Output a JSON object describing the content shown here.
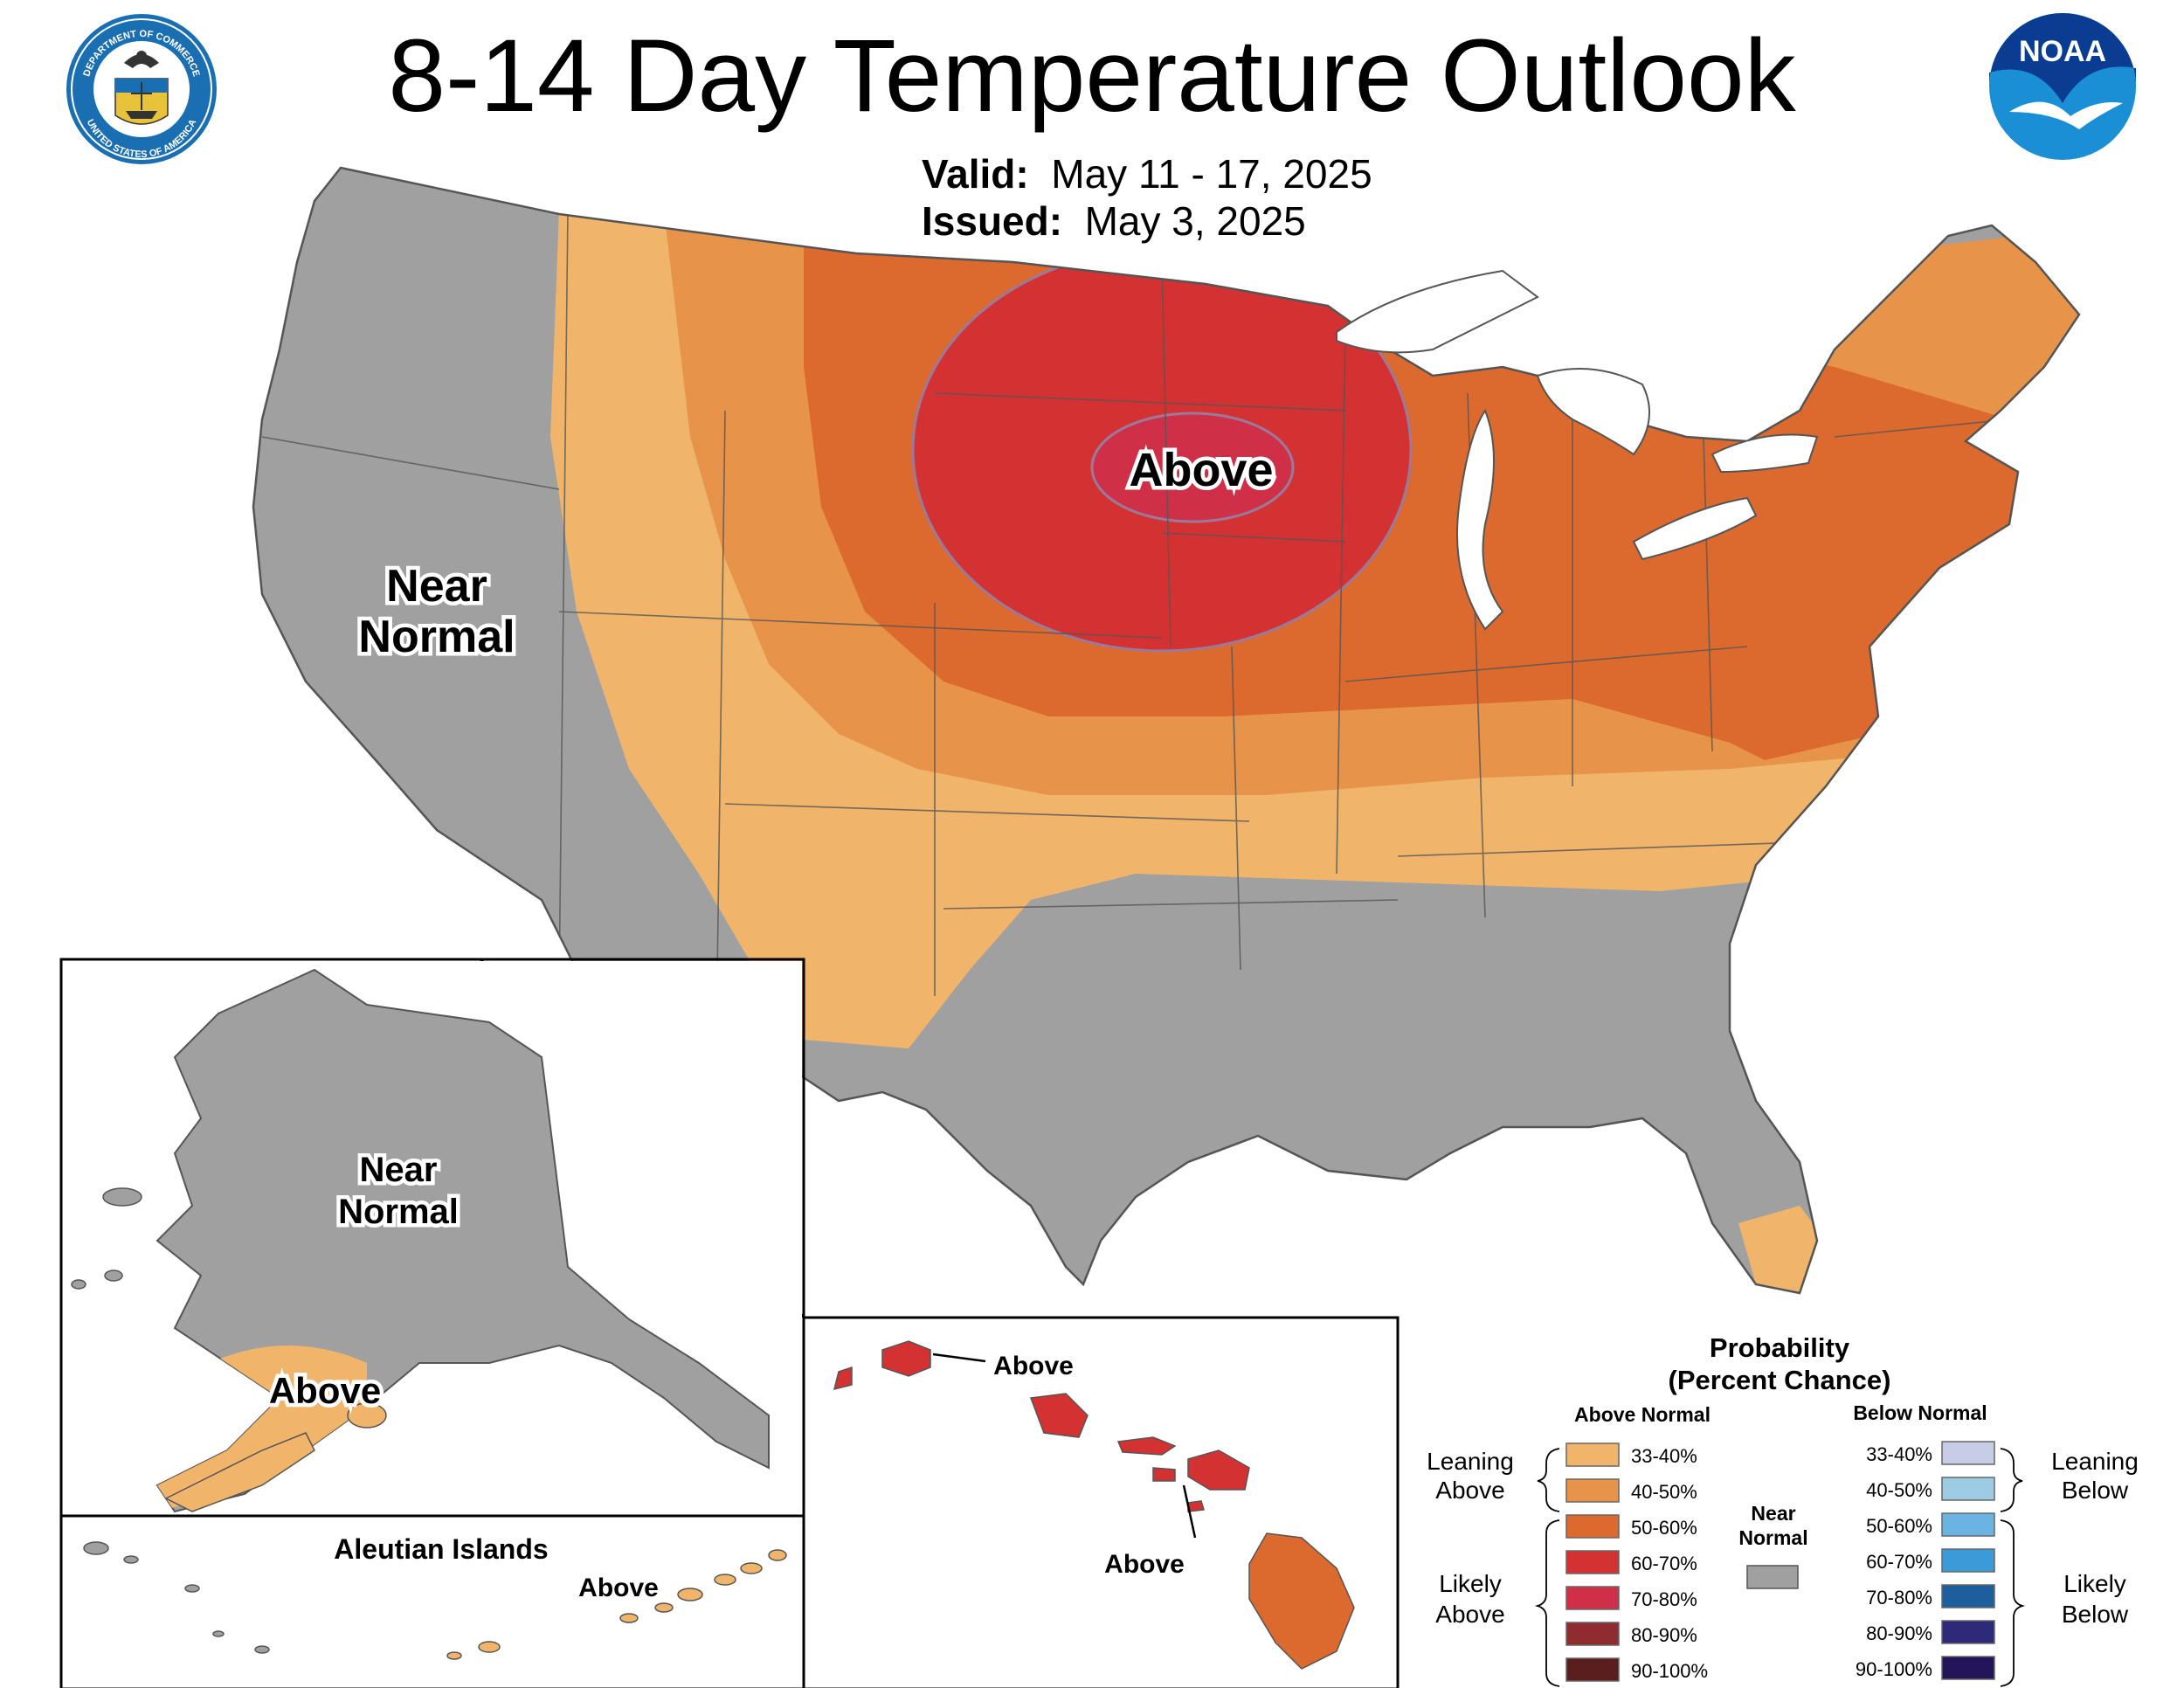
{
  "title": "8-14 Day Temperature Outlook",
  "valid": {
    "label": "Valid:",
    "value": "May 11 - 17, 2025"
  },
  "issued": {
    "label": "Issued:",
    "value": "May 3, 2025"
  },
  "logos": {
    "commerce": {
      "icon": "department-of-commerce-seal",
      "text_top": "DEPARTMENT OF COMMERCE",
      "text_bottom": "UNITED STATES OF AMERICA"
    },
    "noaa": {
      "icon": "noaa-logo",
      "text": "NOAA"
    }
  },
  "map_labels": {
    "conus_above": "Above",
    "conus_near_normal_line1": "Near",
    "conus_near_normal_line2": "Normal",
    "alaska_near_normal_line1": "Near",
    "alaska_near_normal_line2": "Normal",
    "alaska_above": "Above",
    "aleutian_title": "Aleutian Islands",
    "aleutian_above": "Above",
    "hawaii_above_north": "Above",
    "hawaii_above_south": "Above"
  },
  "legend": {
    "title_line1": "Probability",
    "title_line2": "(Percent Chance)",
    "above_header": "Above Normal",
    "below_header": "Below Normal",
    "near_normal_line1": "Near",
    "near_normal_line2": "Normal",
    "near_normal_color": "#a0a0a0",
    "leaning_above_line1": "Leaning",
    "leaning_above_line2": "Above",
    "likely_above_line1": "Likely",
    "likely_above_line2": "Above",
    "leaning_below_line1": "Leaning",
    "leaning_below_line2": "Below",
    "likely_below_line1": "Likely",
    "likely_below_line2": "Below",
    "above_bins": [
      {
        "label": "33-40%",
        "color": "#f0b56a"
      },
      {
        "label": "40-50%",
        "color": "#e8934a"
      },
      {
        "label": "50-60%",
        "color": "#dc6a2e"
      },
      {
        "label": "60-70%",
        "color": "#d43232"
      },
      {
        "label": "70-80%",
        "color": "#cf3048"
      },
      {
        "label": "80-90%",
        "color": "#8e2c30"
      },
      {
        "label": "90-100%",
        "color": "#5a1e1e"
      }
    ],
    "below_bins": [
      {
        "label": "33-40%",
        "color": "#c8cde6"
      },
      {
        "label": "40-50%",
        "color": "#9dcbe3"
      },
      {
        "label": "50-60%",
        "color": "#6ab4e3"
      },
      {
        "label": "60-70%",
        "color": "#3a9bd8"
      },
      {
        "label": "70-80%",
        "color": "#1c5f9c"
      },
      {
        "label": "80-90%",
        "color": "#2e2a7a"
      },
      {
        "label": "90-100%",
        "color": "#24145a"
      }
    ]
  }
}
